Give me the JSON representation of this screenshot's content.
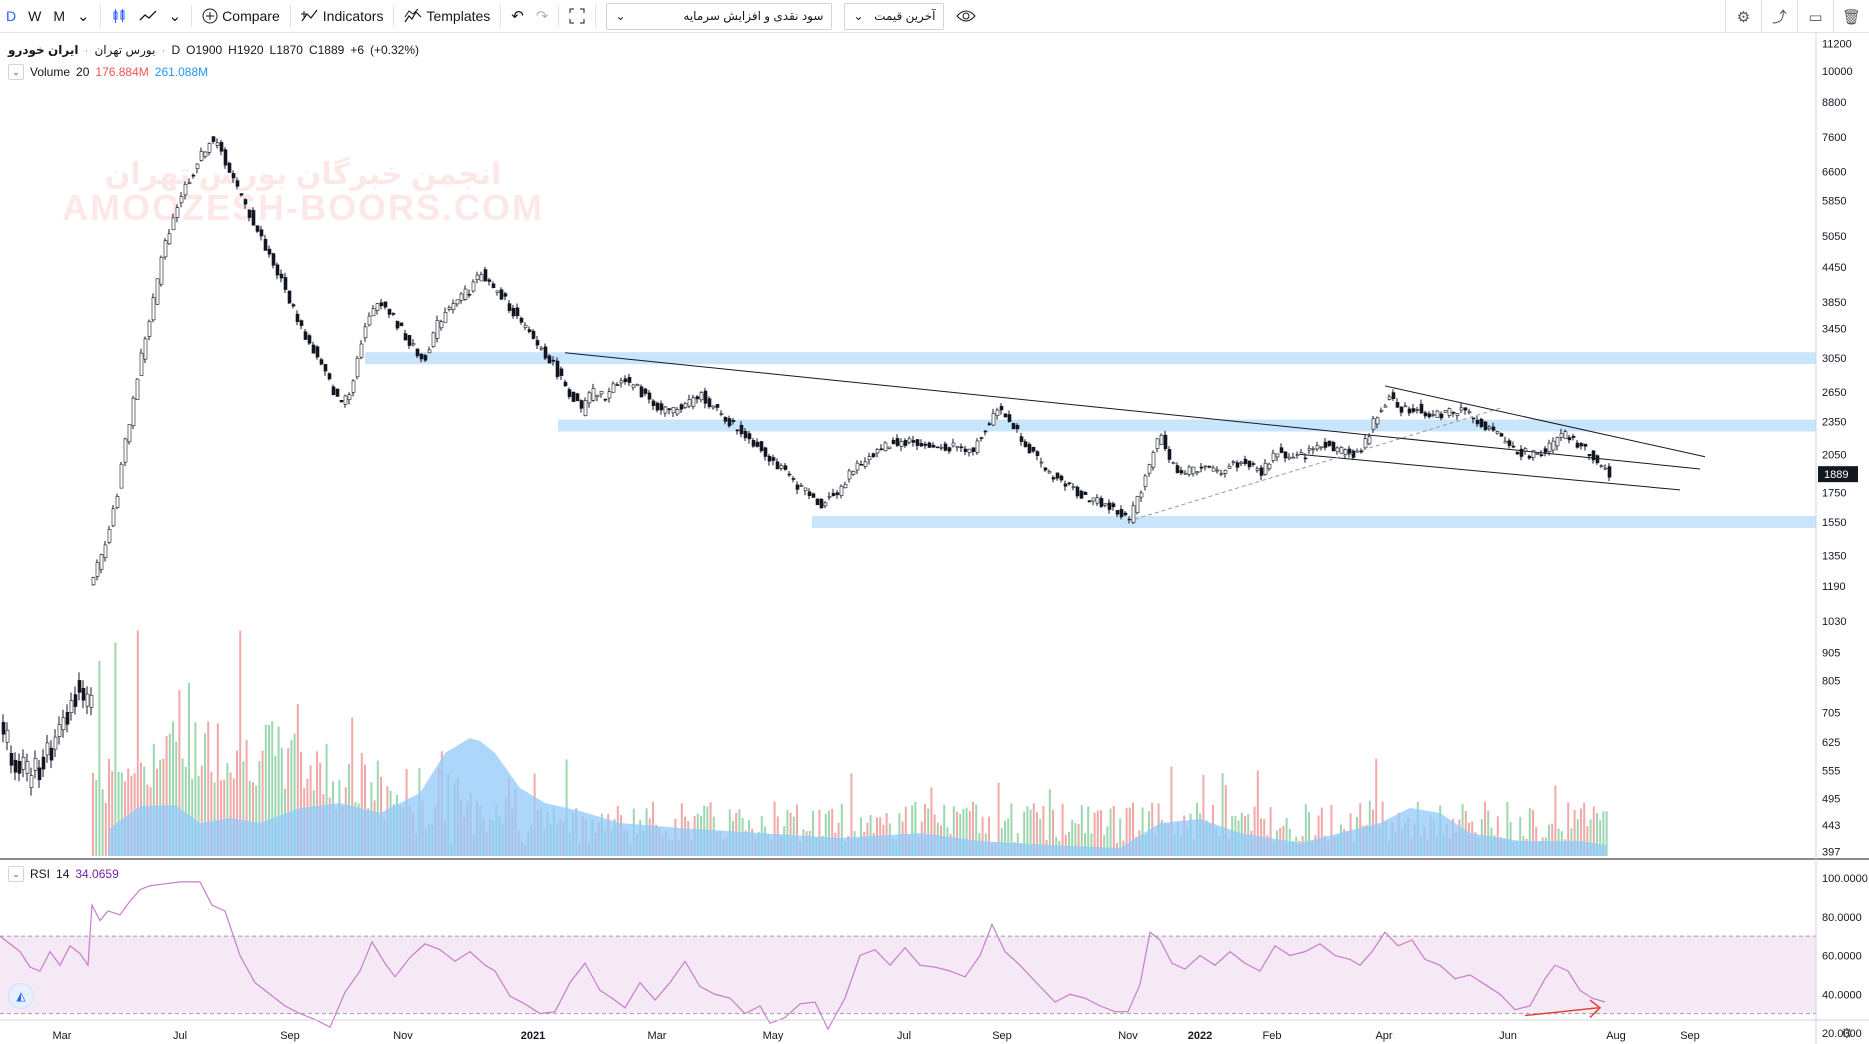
{
  "toolbar": {
    "intervals": [
      "D",
      "W",
      "M"
    ],
    "active_interval": "D",
    "compare_label": "Compare",
    "indicators_label": "Indicators",
    "templates_label": "Templates",
    "select1_value": "سود نقدی و افزایش سرمایه",
    "select2_value": "آخرین قیمت"
  },
  "legend": {
    "symbol": "ایران خودرو",
    "exchange": "بورس تهران",
    "interval": "D",
    "open_label": "O",
    "open": "1900",
    "high_label": "H",
    "high": "1920",
    "low_label": "L",
    "low": "1870",
    "close_label": "C",
    "close": "1889",
    "change": "+6",
    "change_pct": "(+0.32%)"
  },
  "volume_legend": {
    "name": "Volume",
    "length": "20",
    "value1": "176.884M",
    "value2": "261.088M"
  },
  "rsi_legend": {
    "name": "RSI",
    "length": "14",
    "value": "34.0659"
  },
  "watermark": {
    "line1": "انجمن خبرگان بورس تهران",
    "line2": "AMOOZESH-BOORS.COM"
  },
  "colors": {
    "up": "#9dd7b0",
    "down": "#f3a8a8",
    "ma_fill": "#90caf9",
    "zone": "#bbdefb",
    "rsi_line": "#c77dcc",
    "rsi_band": "#f3e5f5",
    "price_label_bg": "#131722",
    "accent": "#2962ff"
  },
  "chart_data": {
    "type": "candlestick",
    "y_scale": "log",
    "price_ticks": [
      11200,
      10000,
      8800,
      7600,
      6600,
      5850,
      5050,
      4450,
      3850,
      3450,
      3050,
      2650,
      2350,
      2050,
      1750,
      1550,
      1350,
      1190,
      1030,
      905,
      805,
      705,
      625,
      555,
      495,
      443,
      397
    ],
    "rsi_ticks": [
      "100.0000",
      "80.0000",
      "60.0000",
      "40.0000",
      "20.0000"
    ],
    "rsi_band": [
      30,
      70
    ],
    "current_price_label": "1889",
    "x_ticks": [
      "Mar",
      "Jul",
      "Sep",
      "Nov",
      "2021",
      "Mar",
      "May",
      "Jul",
      "Sep",
      "Nov",
      "2022",
      "Feb",
      "Apr",
      "Jun",
      "Aug",
      "Sep"
    ],
    "price_path": [
      [
        90,
        1220
      ],
      [
        100,
        1340
      ],
      [
        115,
        1700
      ],
      [
        130,
        2450
      ],
      [
        150,
        3700
      ],
      [
        165,
        5000
      ],
      [
        180,
        6000
      ],
      [
        192,
        6600
      ],
      [
        210,
        7600
      ],
      [
        222,
        7000
      ],
      [
        238,
        6000
      ],
      [
        255,
        5200
      ],
      [
        272,
        4500
      ],
      [
        290,
        3800
      ],
      [
        305,
        3300
      ],
      [
        320,
        2950
      ],
      [
        338,
        2520
      ],
      [
        350,
        2700
      ],
      [
        362,
        3400
      ],
      [
        378,
        3900
      ],
      [
        392,
        3600
      ],
      [
        408,
        3250
      ],
      [
        422,
        3000
      ],
      [
        436,
        3500
      ],
      [
        450,
        3850
      ],
      [
        468,
        4050
      ],
      [
        480,
        4350
      ],
      [
        492,
        4050
      ],
      [
        505,
        3850
      ],
      [
        520,
        3500
      ],
      [
        535,
        3250
      ],
      [
        550,
        3000
      ],
      [
        565,
        2700
      ],
      [
        580,
        2450
      ],
      [
        590,
        2650
      ],
      [
        605,
        2600
      ],
      [
        620,
        2820
      ],
      [
        640,
        2650
      ],
      [
        660,
        2460
      ],
      [
        680,
        2470
      ],
      [
        700,
        2620
      ],
      [
        720,
        2400
      ],
      [
        740,
        2250
      ],
      [
        762,
        2080
      ],
      [
        780,
        1920
      ],
      [
        800,
        1780
      ],
      [
        818,
        1660
      ],
      [
        835,
        1750
      ],
      [
        850,
        1900
      ],
      [
        870,
        2050
      ],
      [
        890,
        2150
      ],
      [
        910,
        2160
      ],
      [
        930,
        2100
      ],
      [
        950,
        2120
      ],
      [
        970,
        2070
      ],
      [
        985,
        2300
      ],
      [
        995,
        2480
      ],
      [
        1008,
        2350
      ],
      [
        1024,
        2150
      ],
      [
        1040,
        1950
      ],
      [
        1058,
        1840
      ],
      [
        1075,
        1760
      ],
      [
        1090,
        1700
      ],
      [
        1105,
        1660
      ],
      [
        1118,
        1600
      ],
      [
        1128,
        1560
      ],
      [
        1140,
        1780
      ],
      [
        1152,
        2080
      ],
      [
        1160,
        2250
      ],
      [
        1170,
        1950
      ],
      [
        1185,
        1900
      ],
      [
        1200,
        1950
      ],
      [
        1215,
        1900
      ],
      [
        1230,
        1960
      ],
      [
        1245,
        1980
      ],
      [
        1260,
        1900
      ],
      [
        1275,
        2080
      ],
      [
        1290,
        2000
      ],
      [
        1305,
        2050
      ],
      [
        1320,
        2150
      ],
      [
        1335,
        2100
      ],
      [
        1350,
        2050
      ],
      [
        1362,
        2100
      ],
      [
        1375,
        2400
      ],
      [
        1388,
        2620
      ],
      [
        1400,
        2480
      ],
      [
        1415,
        2480
      ],
      [
        1430,
        2400
      ],
      [
        1445,
        2440
      ],
      [
        1460,
        2460
      ],
      [
        1475,
        2380
      ],
      [
        1490,
        2250
      ],
      [
        1505,
        2150
      ],
      [
        1520,
        2060
      ],
      [
        1535,
        2050
      ],
      [
        1550,
        2120
      ],
      [
        1562,
        2220
      ],
      [
        1575,
        2140
      ],
      [
        1590,
        2050
      ],
      [
        1600,
        1950
      ],
      [
        1610,
        1889
      ]
    ],
    "rsi_path": [
      [
        0,
        70
      ],
      [
        10,
        66
      ],
      [
        20,
        62
      ],
      [
        30,
        54
      ],
      [
        40,
        52
      ],
      [
        50,
        62
      ],
      [
        60,
        55
      ],
      [
        70,
        65
      ],
      [
        80,
        61
      ],
      [
        88,
        55
      ],
      [
        92,
        86
      ],
      [
        100,
        78
      ],
      [
        108,
        83
      ],
      [
        120,
        81
      ],
      [
        130,
        88
      ],
      [
        140,
        94
      ],
      [
        150,
        96
      ],
      [
        165,
        97
      ],
      [
        180,
        98
      ],
      [
        200,
        98
      ],
      [
        212,
        86
      ],
      [
        225,
        83
      ],
      [
        240,
        60
      ],
      [
        255,
        46
      ],
      [
        270,
        40
      ],
      [
        285,
        34
      ],
      [
        300,
        30
      ],
      [
        315,
        27
      ],
      [
        330,
        23
      ],
      [
        345,
        41
      ],
      [
        360,
        52
      ],
      [
        372,
        67
      ],
      [
        385,
        56
      ],
      [
        395,
        49
      ],
      [
        410,
        59
      ],
      [
        425,
        66
      ],
      [
        440,
        63
      ],
      [
        455,
        57
      ],
      [
        470,
        62
      ],
      [
        485,
        55
      ],
      [
        495,
        52
      ],
      [
        510,
        39
      ],
      [
        525,
        35
      ],
      [
        540,
        30
      ],
      [
        555,
        31
      ],
      [
        570,
        46
      ],
      [
        585,
        56
      ],
      [
        600,
        42
      ],
      [
        612,
        38
      ],
      [
        625,
        33
      ],
      [
        640,
        46
      ],
      [
        655,
        37
      ],
      [
        670,
        46
      ],
      [
        685,
        57
      ],
      [
        700,
        44
      ],
      [
        715,
        40
      ],
      [
        730,
        38
      ],
      [
        745,
        30
      ],
      [
        760,
        34
      ],
      [
        770,
        25
      ],
      [
        785,
        28
      ],
      [
        800,
        35
      ],
      [
        815,
        36
      ],
      [
        828,
        22
      ],
      [
        845,
        38
      ],
      [
        860,
        60
      ],
      [
        875,
        63
      ],
      [
        890,
        55
      ],
      [
        905,
        64
      ],
      [
        920,
        55
      ],
      [
        935,
        54
      ],
      [
        950,
        52
      ],
      [
        965,
        49
      ],
      [
        980,
        60
      ],
      [
        992,
        76
      ],
      [
        1005,
        62
      ],
      [
        1020,
        55
      ],
      [
        1040,
        44
      ],
      [
        1055,
        36
      ],
      [
        1070,
        40
      ],
      [
        1085,
        38
      ],
      [
        1100,
        34
      ],
      [
        1115,
        31
      ],
      [
        1128,
        31
      ],
      [
        1140,
        45
      ],
      [
        1150,
        72
      ],
      [
        1160,
        68
      ],
      [
        1172,
        56
      ],
      [
        1185,
        53
      ],
      [
        1200,
        60
      ],
      [
        1215,
        55
      ],
      [
        1230,
        62
      ],
      [
        1245,
        56
      ],
      [
        1260,
        52
      ],
      [
        1275,
        65
      ],
      [
        1290,
        60
      ],
      [
        1305,
        62
      ],
      [
        1320,
        66
      ],
      [
        1335,
        60
      ],
      [
        1350,
        58
      ],
      [
        1360,
        55
      ],
      [
        1372,
        62
      ],
      [
        1385,
        72
      ],
      [
        1398,
        65
      ],
      [
        1412,
        68
      ],
      [
        1425,
        58
      ],
      [
        1440,
        55
      ],
      [
        1455,
        48
      ],
      [
        1470,
        50
      ],
      [
        1485,
        45
      ],
      [
        1500,
        40
      ],
      [
        1515,
        32
      ],
      [
        1530,
        34
      ],
      [
        1545,
        48
      ],
      [
        1555,
        55
      ],
      [
        1568,
        52
      ],
      [
        1580,
        42
      ],
      [
        1592,
        38
      ],
      [
        1605,
        36
      ]
    ]
  }
}
